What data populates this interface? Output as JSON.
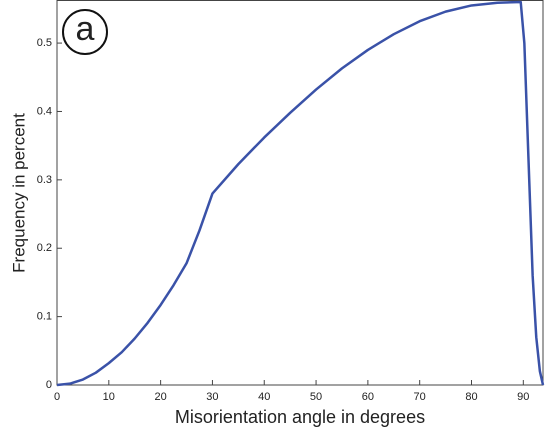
{
  "chart_data": {
    "type": "line",
    "annotation": "a",
    "x_label": "Misorientation angle in degrees",
    "y_label": "Frequency in percent",
    "x": [
      0,
      2.5,
      5,
      7.5,
      10,
      12.5,
      15,
      17.5,
      20,
      22.5,
      25,
      27.5,
      30,
      35,
      40,
      45,
      50,
      55,
      60,
      65,
      70,
      75,
      80,
      85,
      89.5,
      90.2,
      91,
      91.8,
      92.5,
      93.2,
      93.8
    ],
    "series": [
      {
        "color": "#3a52a8",
        "values": [
          0,
          0.002,
          0.008,
          0.018,
          0.032,
          0.048,
          0.068,
          0.091,
          0.117,
          0.146,
          0.178,
          0.226,
          0.28,
          0.323,
          0.362,
          0.398,
          0.432,
          0.463,
          0.49,
          0.513,
          0.532,
          0.546,
          0.555,
          0.559,
          0.56,
          0.5,
          0.33,
          0.16,
          0.07,
          0.02,
          0
        ]
      }
    ],
    "xlim": [
      0,
      93.8
    ],
    "ylim": [
      0,
      0.563
    ],
    "xticks": [
      0,
      10,
      20,
      30,
      40,
      50,
      60,
      70,
      80,
      90
    ],
    "yticks": [
      0,
      0.1,
      0.2,
      0.3,
      0.4,
      0.5
    ]
  }
}
